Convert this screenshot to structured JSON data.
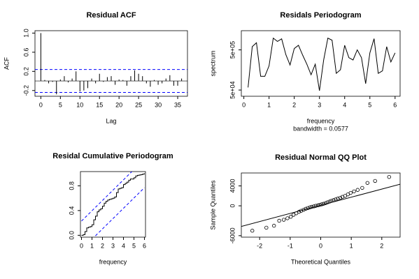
{
  "chart_data": [
    {
      "type": "bar",
      "title": "Residual ACF",
      "x_label": "Lag",
      "y_label": "ACF",
      "x": [
        0,
        1,
        2,
        3,
        4,
        5,
        6,
        7,
        8,
        9,
        10,
        11,
        12,
        13,
        14,
        15,
        16,
        17,
        18,
        19,
        20,
        21,
        22,
        23,
        24,
        25,
        26,
        27,
        28,
        29,
        30,
        31,
        32,
        33,
        34,
        35,
        36
      ],
      "values": [
        1.0,
        0.02,
        -0.05,
        -0.02,
        -0.28,
        0.03,
        0.1,
        -0.03,
        0.05,
        0.2,
        -0.22,
        -0.2,
        -0.15,
        0.05,
        -0.05,
        0.15,
        -0.02,
        0.08,
        0.1,
        -0.08,
        0.03,
        0.02,
        -0.1,
        0.1,
        0.22,
        0.15,
        0.1,
        -0.05,
        -0.12,
        0.02,
        -0.08,
        -0.05,
        0.05,
        0.12,
        -0.1,
        -0.1,
        0.05
      ],
      "color": "#000000",
      "hlines": [
        0.24,
        -0.24
      ],
      "hline_color": "#0000ff",
      "xlim": [
        -1.5,
        37.5
      ],
      "xticks": [
        0,
        5,
        10,
        15,
        20,
        25,
        30,
        35
      ],
      "ylim": [
        -0.32,
        1.05
      ],
      "yticks": [
        -0.2,
        0.2,
        0.6,
        {
          "value": 1.0,
          "label": "1.0"
        }
      ]
    },
    {
      "type": "line",
      "title": "Residals Periodogram",
      "x_label": "frequency",
      "y_label": "spectrum",
      "annotation": "bandwidth = 0.0577",
      "log_y": true,
      "color": "#000000",
      "x": [
        0.167,
        0.333,
        0.5,
        0.667,
        0.833,
        1.0,
        1.167,
        1.333,
        1.5,
        1.667,
        1.833,
        2.0,
        2.167,
        2.333,
        2.5,
        2.667,
        2.833,
        3.0,
        3.167,
        3.333,
        3.5,
        3.667,
        3.833,
        4.0,
        4.167,
        4.333,
        4.5,
        4.667,
        4.833,
        5.0,
        5.167,
        5.333,
        5.5,
        5.667,
        5.833,
        6.0
      ],
      "values": [
        58000,
        600000,
        750000,
        110000,
        110000,
        200000,
        980000,
        810000,
        940000,
        380000,
        210000,
        540000,
        650000,
        370000,
        220000,
        120000,
        220000,
        48000,
        280000,
        980000,
        870000,
        130000,
        160000,
        650000,
        320000,
        280000,
        500000,
        320000,
        72000,
        420000,
        950000,
        130000,
        150000,
        600000,
        250000,
        420000
      ],
      "xlim": [
        -0.1,
        6.2
      ],
      "xticks": [
        0,
        1,
        2,
        3,
        4,
        5,
        6
      ],
      "ylim": [
        35000,
        1500000
      ],
      "yticks": [
        {
          "value": 50000,
          "label": "5e+04"
        },
        {
          "value": 500000,
          "label": "5e+05"
        }
      ]
    },
    {
      "type": "step",
      "title": "Residal Cumulative Periodogram",
      "x_label": "frequency",
      "color": "#000000",
      "band": 0.23,
      "band_color": "#0000ff",
      "x": [
        0.167,
        0.333,
        0.5,
        0.667,
        0.833,
        1.0,
        1.167,
        1.333,
        1.5,
        1.667,
        1.833,
        2.0,
        2.167,
        2.333,
        2.5,
        2.667,
        2.833,
        3.0,
        3.167,
        3.333,
        3.5,
        3.667,
        3.833,
        4.0,
        4.167,
        4.333,
        4.5,
        4.667,
        4.833,
        5.0,
        5.167,
        5.333,
        5.5,
        5.667,
        5.833,
        6.0
      ],
      "values": [
        0.01,
        0.06,
        0.12,
        0.13,
        0.14,
        0.17,
        0.25,
        0.31,
        0.38,
        0.41,
        0.43,
        0.47,
        0.52,
        0.55,
        0.57,
        0.58,
        0.59,
        0.6,
        0.62,
        0.69,
        0.75,
        0.76,
        0.77,
        0.82,
        0.84,
        0.86,
        0.89,
        0.91,
        0.91,
        0.93,
        0.96,
        0.97,
        0.975,
        0.98,
        0.99,
        1.0
      ],
      "xlim": [
        -0.1,
        6.1
      ],
      "xticks": [
        0,
        1,
        2,
        3,
        4,
        5,
        6
      ],
      "ylim": [
        -0.03,
        1.03
      ],
      "yticks": [
        {
          "value": 0,
          "label": "0.0"
        },
        0.4,
        0.8
      ]
    },
    {
      "type": "scatter",
      "title": "Residual Normal QQ Plot",
      "x_label": "Theoretical Quantiles",
      "y_label": "Sample Quantiles",
      "color": "#000000",
      "line": {
        "intercept": 100,
        "slope": 1630
      },
      "x": [
        -2.24,
        -1.78,
        -1.53,
        -1.36,
        -1.21,
        -1.09,
        -0.98,
        -0.89,
        -0.8,
        -0.71,
        -0.64,
        -0.56,
        -0.49,
        -0.42,
        -0.35,
        -0.29,
        -0.22,
        -0.16,
        -0.09,
        -0.03,
        0.03,
        0.09,
        0.16,
        0.22,
        0.29,
        0.35,
        0.42,
        0.49,
        0.56,
        0.64,
        0.71,
        0.8,
        0.89,
        0.98,
        1.09,
        1.21,
        1.36,
        1.53,
        1.78,
        2.24
      ],
      "values": [
        -5000,
        -4400,
        -4000,
        -3000,
        -2800,
        -2500,
        -2200,
        -1800,
        -1500,
        -1200,
        -1000,
        -800,
        -600,
        -450,
        -300,
        -200,
        -100,
        0,
        100,
        200,
        300,
        400,
        550,
        700,
        850,
        1000,
        1150,
        1300,
        1450,
        1600,
        1800,
        2000,
        2300,
        2600,
        2900,
        3200,
        3600,
        4600,
        5000,
        5800
      ],
      "xlim": [
        -2.6,
        2.6
      ],
      "xticks": [
        -2,
        -1,
        0,
        1,
        2
      ],
      "ylim": [
        -6300,
        6600
      ],
      "yticks": [
        -6000,
        0,
        4000
      ]
    }
  ]
}
